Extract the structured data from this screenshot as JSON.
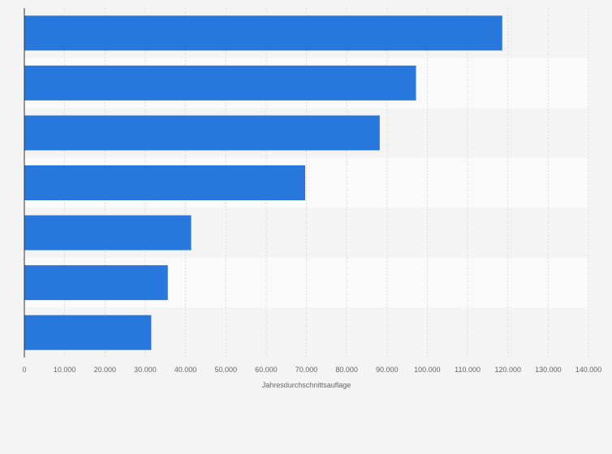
{
  "chart_data": {
    "type": "bar",
    "orientation": "horizontal",
    "title": "",
    "xlabel": "Jahresdurchschnittsauflage",
    "ylabel": "",
    "categories": [
      "",
      "",
      "",
      "",
      "",
      "",
      ""
    ],
    "values": [
      118600,
      97200,
      88200,
      69700,
      41400,
      35600,
      31500
    ],
    "xlim": [
      0,
      140000
    ],
    "ticks": [
      0,
      10000,
      20000,
      30000,
      40000,
      50000,
      60000,
      70000,
      80000,
      90000,
      100000,
      110000,
      120000,
      130000,
      140000
    ],
    "tick_labels": [
      "0",
      "10.000",
      "20.000",
      "30.000",
      "40.000",
      "50.000",
      "60.000",
      "70.000",
      "80.000",
      "90.000",
      "100.000",
      "110.000",
      "120.000",
      "130.000",
      "140.000"
    ],
    "grid": true,
    "legend": "none",
    "bar_color": "#2777dd",
    "band_colors": [
      "#f4f4f4",
      "#fafafa"
    ],
    "grid_color": "#dddddd",
    "axis_color": "#333333"
  }
}
